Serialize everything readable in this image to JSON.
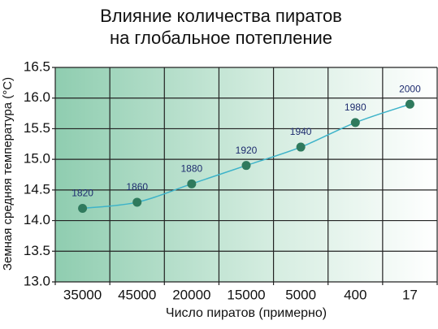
{
  "chart_data": {
    "type": "line",
    "title": [
      "Влияние количества пиратов",
      "на глобальное потепление"
    ],
    "x_label": "Число пиратов (примерно)",
    "y_label": "Земная средняя температура (°C)",
    "categories": [
      "35000",
      "45000",
      "20000",
      "15000",
      "5000",
      "400",
      "17"
    ],
    "values": [
      14.2,
      14.3,
      14.6,
      14.9,
      15.2,
      15.6,
      15.9
    ],
    "point_labels": [
      "1820",
      "1860",
      "1880",
      "1920",
      "1940",
      "1980",
      "2000"
    ],
    "ylim": [
      13.0,
      16.5
    ],
    "yticks": [
      {
        "value": 13,
        "label": "13.0"
      },
      {
        "value": 13.5,
        "label": "13.5"
      },
      {
        "value": 14,
        "label": "14.0"
      },
      {
        "value": 14.5,
        "label": "14.5"
      },
      {
        "value": 15,
        "label": "15.0"
      },
      {
        "value": 15.5,
        "label": "15.5"
      },
      {
        "value": 16,
        "label": "16.0"
      },
      {
        "value": 16.5,
        "label": "16.5"
      }
    ],
    "grid": true,
    "line_color": "#3db3c9",
    "marker_color": "#2f7a5d",
    "label_color": "#1d2b6e"
  }
}
